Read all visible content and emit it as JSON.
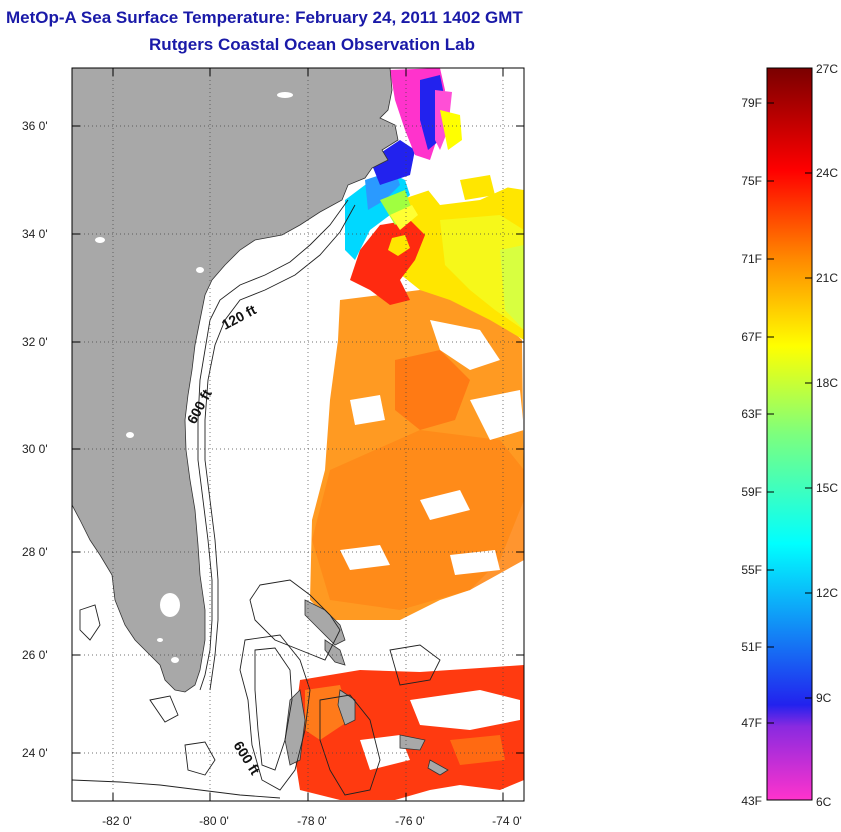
{
  "title": "MetOp-A Sea Surface Temperature:  February 24, 2011 1402 GMT",
  "subtitle": "Rutgers Coastal Ocean Observation Lab",
  "map": {
    "lat_labels": [
      "36 0'",
      "34 0'",
      "32 0'",
      "30 0'",
      "28 0'",
      "26 0'",
      "24 0'"
    ],
    "lon_labels": [
      "-82 0'",
      "-80 0'",
      "-78 0'",
      "-76 0'",
      "-74 0'"
    ],
    "lat_range": [
      23,
      37
    ],
    "lon_range": [
      -83,
      -73
    ],
    "contour_labels": [
      "120 ft",
      "600 ft",
      "600 ft"
    ],
    "land_color": "#a8a8a8",
    "grid": "dotted"
  },
  "colorbar": {
    "fahrenheit_labels": [
      "79F",
      "75F",
      "71F",
      "67F",
      "63F",
      "59F",
      "55F",
      "51F",
      "47F",
      "43F"
    ],
    "celsius_labels": [
      "27C",
      "24C",
      "21C",
      "18C",
      "15C",
      "12C",
      "9C",
      "6C"
    ],
    "range_c": [
      6,
      27
    ],
    "colors": [
      "#ff33cc",
      "#2222ee",
      "#00ffff",
      "#ffff00",
      "#ff8800",
      "#ff0000",
      "#7a0000"
    ]
  }
}
